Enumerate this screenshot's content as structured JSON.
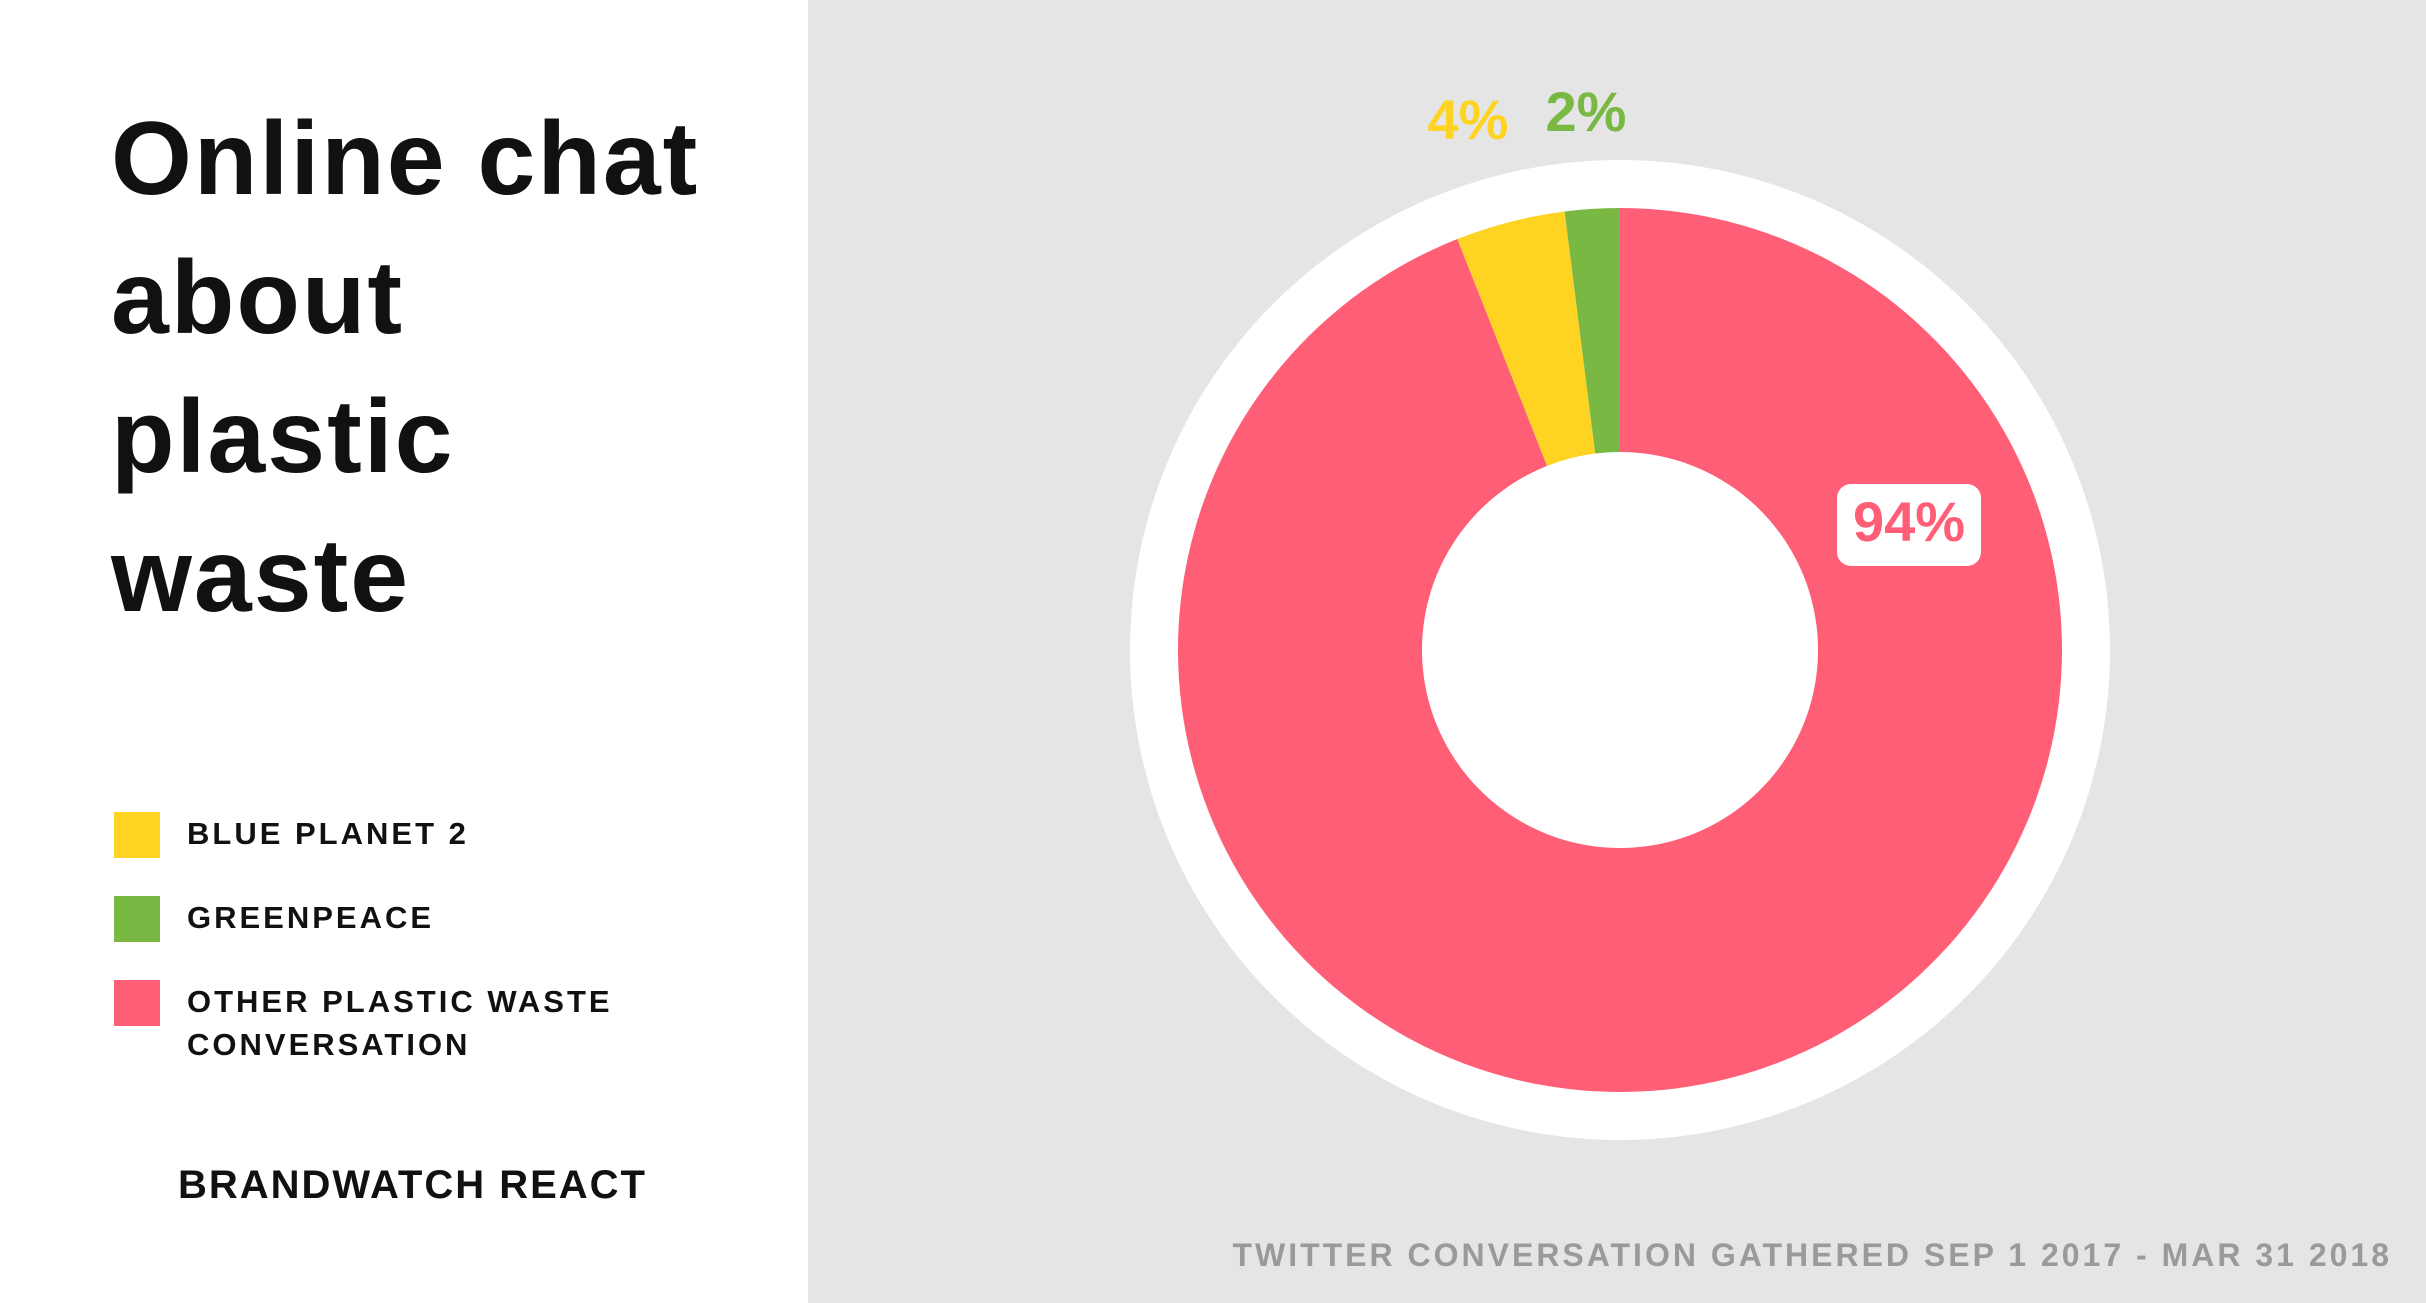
{
  "chart_data": {
    "type": "donut",
    "title": "Online chat about plastic waste",
    "categories": [
      "BLUE PLANET 2",
      "GREENPEACE",
      "OTHER PLASTIC WASTE CONVERSATION"
    ],
    "values": [
      4,
      2,
      94
    ],
    "value_labels": [
      "4%",
      "2%",
      "94%"
    ],
    "colors": [
      "#ffd322",
      "#7ab844",
      "#ff5f76"
    ],
    "source": "BRANDWATCH REACT",
    "note": "TWITTER CONVERSATION GATHERED SEP 1 2017 - MAR 31 2018"
  }
}
